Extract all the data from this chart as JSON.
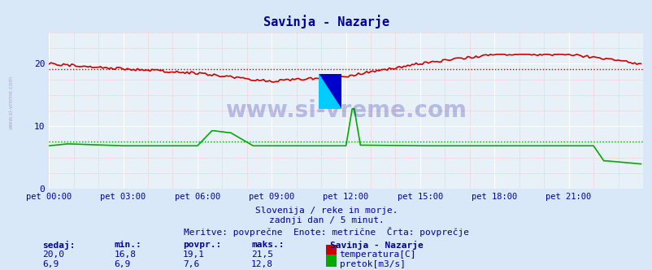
{
  "title": "Savinja - Nazarje",
  "title_color": "#000099",
  "bg_color": "#d8e8f8",
  "plot_bg_color": "#e8f0f8",
  "xlabel_color": "#000099",
  "xlabels": [
    "pet 00:00",
    "pet 03:00",
    "pet 06:00",
    "pet 09:00",
    "pet 12:00",
    "pet 15:00",
    "pet 18:00",
    "pet 21:00"
  ],
  "xticks": [
    0,
    36,
    72,
    108,
    144,
    180,
    216,
    252
  ],
  "ylim": [
    0,
    25
  ],
  "yticks": [
    0,
    10,
    20
  ],
  "xlim": [
    0,
    288
  ],
  "temp_color": "#cc0000",
  "flow_color": "#00aa00",
  "watermark": "www.si-vreme.com",
  "footer_line1": "Slovenija / reke in morje.",
  "footer_line2": "zadnji dan / 5 minut.",
  "footer_line3": "Meritve: povprečne  Enote: metrične  Črta: povprečje",
  "legend_title": "Savinja - Nazarje",
  "legend_items": [
    "temperatura[C]",
    "pretok[m3/s]"
  ],
  "legend_colors": [
    "#cc0000",
    "#00aa00"
  ],
  "stat_headers": [
    "sedaj:",
    "min.:",
    "povpr.:",
    "maks.:"
  ],
  "stat_temp": [
    "20,0",
    "16,8",
    "19,1",
    "21,5"
  ],
  "stat_flow": [
    "6,9",
    "6,9",
    "7,6",
    "12,8"
  ],
  "stat_color": "#000099",
  "n_points": 288,
  "avg_temp": 19.1,
  "avg_flow": 7.6,
  "logo_colors": [
    "#ffff00",
    "#00ccff",
    "#00ccff",
    "#0000cc"
  ]
}
